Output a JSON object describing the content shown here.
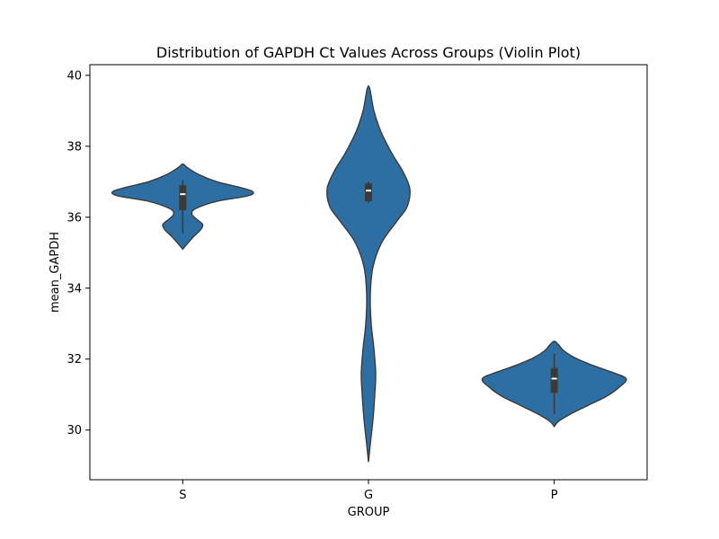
{
  "chart_data": {
    "type": "violin",
    "title": "Distribution of GAPDH Ct Values Across Groups (Violin Plot)",
    "xlabel": "GROUP",
    "ylabel": "mean_GAPDH",
    "categories": [
      "S",
      "G",
      "P"
    ],
    "ylim": [
      28.6,
      40.3
    ],
    "yticks": [
      "30",
      "32",
      "34",
      "36",
      "38",
      "40"
    ],
    "grid": false,
    "color": "#2e6fa3",
    "edge_color": "#3a3a3a",
    "box_color": "#3a3a3a",
    "groups": [
      {
        "category": "S",
        "range": [
          35.1,
          37.5
        ],
        "density": [
          [
            35.1,
            0.0
          ],
          [
            35.25,
            0.05
          ],
          [
            35.45,
            0.12
          ],
          [
            35.65,
            0.2
          ],
          [
            35.8,
            0.22
          ],
          [
            35.95,
            0.15
          ],
          [
            36.1,
            0.1
          ],
          [
            36.25,
            0.15
          ],
          [
            36.45,
            0.38
          ],
          [
            36.6,
            0.72
          ],
          [
            36.72,
            0.78
          ],
          [
            36.85,
            0.62
          ],
          [
            37.0,
            0.38
          ],
          [
            37.2,
            0.18
          ],
          [
            37.4,
            0.05
          ],
          [
            37.5,
            0.0
          ]
        ],
        "whisker": [
          35.55,
          37.05
        ],
        "quartiles": [
          36.2,
          36.9
        ],
        "median": 36.65
      },
      {
        "category": "G",
        "range": [
          29.1,
          39.7
        ],
        "density": [
          [
            29.1,
            0.0
          ],
          [
            29.6,
            0.02
          ],
          [
            30.3,
            0.05
          ],
          [
            31.0,
            0.07
          ],
          [
            31.6,
            0.08
          ],
          [
            32.3,
            0.06
          ],
          [
            33.0,
            0.03
          ],
          [
            33.8,
            0.02
          ],
          [
            34.6,
            0.05
          ],
          [
            35.3,
            0.15
          ],
          [
            35.9,
            0.32
          ],
          [
            36.3,
            0.43
          ],
          [
            36.8,
            0.46
          ],
          [
            37.3,
            0.38
          ],
          [
            37.8,
            0.26
          ],
          [
            38.4,
            0.14
          ],
          [
            39.0,
            0.06
          ],
          [
            39.7,
            0.0
          ]
        ],
        "whisker": [
          36.4,
          37.0
        ],
        "quartiles": [
          36.45,
          36.95
        ],
        "median": 36.75
      },
      {
        "category": "P",
        "range": [
          30.1,
          32.5
        ],
        "density": [
          [
            30.1,
            0.0
          ],
          [
            30.25,
            0.05
          ],
          [
            30.45,
            0.18
          ],
          [
            30.7,
            0.38
          ],
          [
            30.95,
            0.58
          ],
          [
            31.2,
            0.72
          ],
          [
            31.45,
            0.8
          ],
          [
            31.65,
            0.62
          ],
          [
            31.85,
            0.4
          ],
          [
            32.05,
            0.22
          ],
          [
            32.25,
            0.1
          ],
          [
            32.4,
            0.05
          ],
          [
            32.5,
            0.0
          ]
        ],
        "whisker": [
          30.45,
          32.15
        ],
        "quartiles": [
          31.05,
          31.75
        ],
        "median": 31.45
      }
    ]
  }
}
